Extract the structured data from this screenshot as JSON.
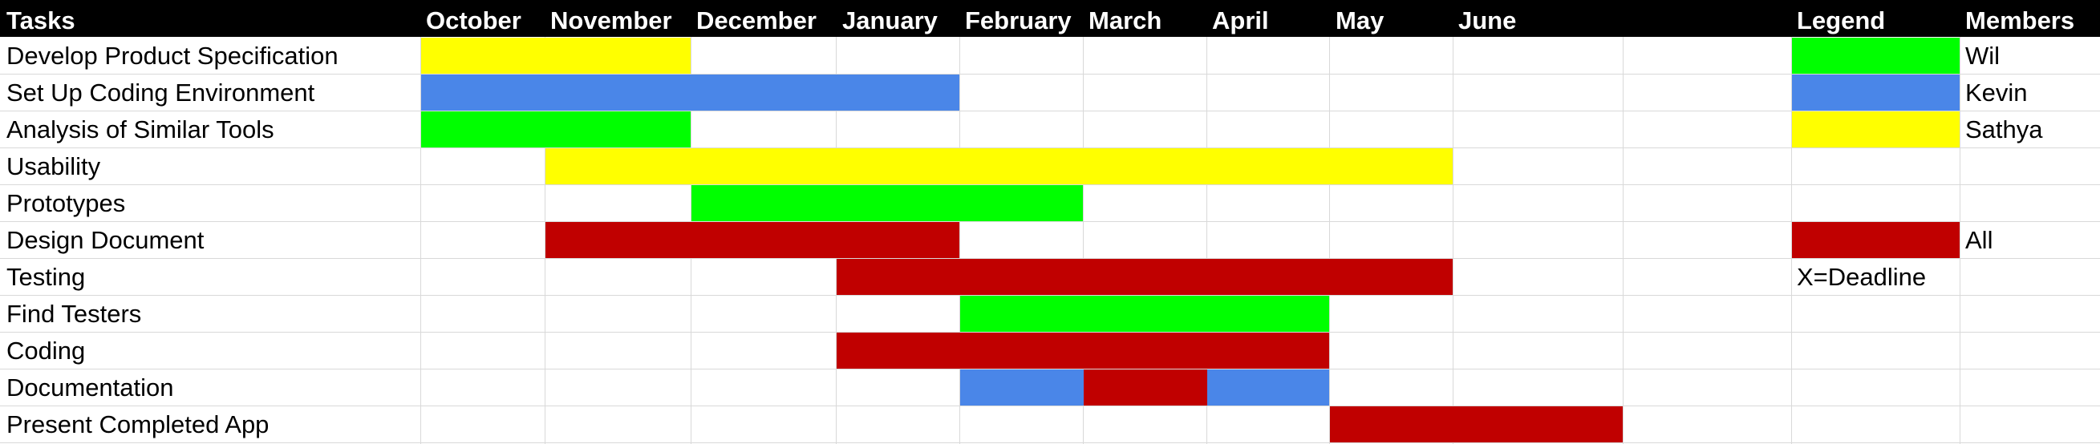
{
  "header": {
    "tasks": "Tasks",
    "months": [
      "October",
      "November",
      "December",
      "January",
      "February",
      "March",
      "April",
      "May",
      "June"
    ],
    "legend": "Legend",
    "members": "Members"
  },
  "colors": {
    "yellow": "#ffff00",
    "blue": "#4a86e8",
    "green": "#00ff00",
    "red": "#c00000"
  },
  "legend": {
    "items": [
      {
        "color": "#00ff00",
        "member": "Wil"
      },
      {
        "color": "#4a86e8",
        "member": "Kevin"
      },
      {
        "color": "#ffff00",
        "member": "Sathya"
      },
      {
        "color": "#c00000",
        "member": "All"
      }
    ],
    "note": "X=Deadline"
  },
  "chart_data": {
    "type": "table",
    "columns": [
      "Tasks",
      "October",
      "November",
      "December",
      "January",
      "February",
      "March",
      "April",
      "May",
      "June",
      "",
      "Legend",
      "Members"
    ],
    "tasks": [
      {
        "name": "Develop Product Specification",
        "segments": [
          {
            "start": 0,
            "end": 1,
            "color": "#ffff00"
          }
        ]
      },
      {
        "name": "Set Up Coding Environment",
        "segments": [
          {
            "start": 0,
            "end": 3,
            "color": "#4a86e8"
          }
        ]
      },
      {
        "name": "Analysis of Similar Tools",
        "segments": [
          {
            "start": 0,
            "end": 1,
            "color": "#00ff00"
          }
        ]
      },
      {
        "name": "Usability",
        "segments": [
          {
            "start": 1,
            "end": 7,
            "color": "#ffff00"
          }
        ]
      },
      {
        "name": "Prototypes",
        "segments": [
          {
            "start": 2,
            "end": 4,
            "color": "#00ff00"
          }
        ]
      },
      {
        "name": "Design Document",
        "segments": [
          {
            "start": 1,
            "end": 3,
            "color": "#c00000"
          }
        ]
      },
      {
        "name": "Testing",
        "segments": [
          {
            "start": 3,
            "end": 7,
            "color": "#c00000"
          }
        ]
      },
      {
        "name": "Find Testers",
        "segments": [
          {
            "start": 4,
            "end": 6,
            "color": "#00ff00"
          }
        ]
      },
      {
        "name": "Coding",
        "segments": [
          {
            "start": 3,
            "end": 6,
            "color": "#c00000"
          }
        ]
      },
      {
        "name": "Documentation",
        "segments": [
          {
            "start": 4,
            "end": 5,
            "color": "#4a86e8"
          },
          {
            "start": 5,
            "end": 6,
            "color": "#c00000"
          },
          {
            "start": 6,
            "end": 6,
            "color": "#4a86e8"
          }
        ]
      },
      {
        "name": "Present Completed App",
        "segments": [
          {
            "start": 7,
            "end": 8,
            "color": "#c00000"
          }
        ]
      }
    ]
  }
}
